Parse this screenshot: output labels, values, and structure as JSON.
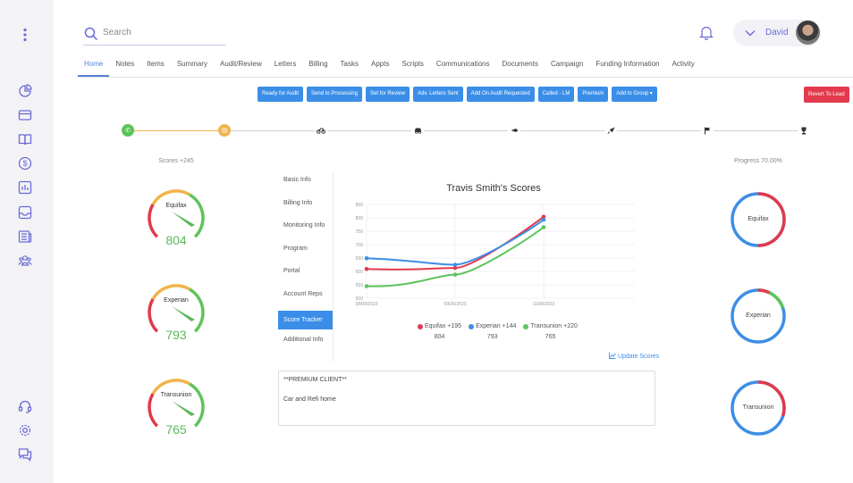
{
  "header": {
    "search_placeholder": "Search",
    "user_name": "David"
  },
  "tabs": [
    "Home",
    "Notes",
    "Items",
    "Summary",
    "Audit/Review",
    "Letters",
    "Billing",
    "Tasks",
    "Appts",
    "Scripts",
    "Communications",
    "Documents",
    "Campaign",
    "Funding Information",
    "Activity"
  ],
  "actions": [
    "Ready for Audit",
    "Send to Processing",
    "Set for Review",
    "Adv. Letters Sent",
    "Add On Audit Requested",
    "Called - LM",
    "Premium",
    "Add to Group ▾"
  ],
  "revert_label": "Revert To Lead",
  "scores_label": "Scores +245",
  "progress_label": "Progress 70.00%",
  "gauges": [
    {
      "name": "Equifax",
      "value": "804"
    },
    {
      "name": "Experian",
      "value": "793"
    },
    {
      "name": "Transunion",
      "value": "765"
    }
  ],
  "menu": [
    "Basic Info",
    "Billing Info",
    "Monitoring Info",
    "Program",
    "Portal",
    "Account Reps",
    "Score Tracker",
    "Additional Info"
  ],
  "legend": [
    {
      "label": "Equifax +195",
      "value": "804",
      "color": "#e03a4c"
    },
    {
      "label": "Experian +144",
      "value": "793",
      "color": "#3d8ee6"
    },
    {
      "label": "Transunion +220",
      "value": "765",
      "color": "#5ec45a"
    }
  ],
  "update_label": "Update Scores",
  "notes": {
    "line1": "**PREMIUM CLIENT**",
    "line2": "Car and Refi home"
  },
  "rings": [
    {
      "name": "Equifax",
      "progress": 0.5,
      "color": "#e03a4c"
    },
    {
      "name": "Experian",
      "progress": 0.2,
      "color": "#e03a4c"
    },
    {
      "name": "Transunion",
      "progress": 0.3,
      "color": "#e03a4c"
    }
  ],
  "colors": {
    "primary": "#3b8ee8",
    "danger": "#e33a4d",
    "success": "#5ec45a",
    "warning": "#f0b44a",
    "accent": "#6b6bd6"
  },
  "sidebar_icons": [
    "more-icon",
    "pie-chart-icon",
    "credit-card-icon",
    "book-icon",
    "dollar-icon",
    "bar-chart-icon",
    "inbox-icon",
    "newspaper-icon",
    "users-icon",
    "headset-icon",
    "settings-icon",
    "chat-icon"
  ],
  "chart_data": {
    "type": "line",
    "title": "Travis Smith's Scores",
    "x": [
      "08/09/2023",
      "09/26/2023",
      "11/08/2023"
    ],
    "yticks": [
      500,
      550,
      600,
      650,
      700,
      750,
      800,
      850
    ],
    "ylim": [
      500,
      850
    ],
    "series": [
      {
        "name": "Equifax",
        "color": "#e03a4c",
        "values": [
          609,
          613,
          804
        ]
      },
      {
        "name": "Experian",
        "color": "#3d8ee6",
        "values": [
          649,
          625,
          793
        ]
      },
      {
        "name": "Transunion",
        "color": "#5ec45a",
        "values": [
          545,
          588,
          765
        ]
      }
    ],
    "grid": true
  }
}
